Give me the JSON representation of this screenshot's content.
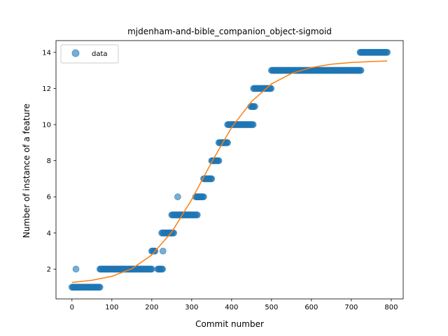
{
  "chart_data": {
    "type": "scatter",
    "title": "mjdenham-and-bible_companion_object-sigmoid",
    "xlabel": "Commit number",
    "ylabel": "Number of instance of a feature",
    "xlim": [
      -40,
      830
    ],
    "ylim": [
      0.35,
      14.65
    ],
    "xticks": [
      0,
      100,
      200,
      300,
      400,
      500,
      600,
      700,
      800
    ],
    "yticks": [
      2,
      4,
      6,
      8,
      10,
      12,
      14
    ],
    "grid": false,
    "legend": {
      "location": "upper left",
      "entries": [
        "data"
      ]
    },
    "series": [
      {
        "name": "data",
        "kind": "scatter",
        "color": "#1f77b4",
        "segments": [
          {
            "x_start": 0,
            "x_end": 70,
            "y": 1
          },
          {
            "x_start": 70,
            "x_end": 200,
            "y": 2
          },
          {
            "x_start": 215,
            "x_end": 228,
            "y": 2
          },
          {
            "x_start": 200,
            "x_end": 208,
            "y": 3
          },
          {
            "x_start": 225,
            "x_end": 255,
            "y": 4
          },
          {
            "x_start": 250,
            "x_end": 315,
            "y": 5
          },
          {
            "x_start": 310,
            "x_end": 330,
            "y": 6
          },
          {
            "x_start": 330,
            "x_end": 350,
            "y": 7
          },
          {
            "x_start": 350,
            "x_end": 368,
            "y": 8
          },
          {
            "x_start": 368,
            "x_end": 390,
            "y": 9
          },
          {
            "x_start": 390,
            "x_end": 455,
            "y": 10
          },
          {
            "x_start": 448,
            "x_end": 458,
            "y": 11
          },
          {
            "x_start": 455,
            "x_end": 500,
            "y": 12
          },
          {
            "x_start": 500,
            "x_end": 725,
            "y": 13
          },
          {
            "x_start": 722,
            "x_end": 790,
            "y": 14
          }
        ],
        "extra_points": [
          {
            "x": 10,
            "y": 2
          },
          {
            "x": 228,
            "y": 3
          },
          {
            "x": 265,
            "y": 6
          }
        ]
      },
      {
        "name": "",
        "kind": "line",
        "color": "#ff7f0e",
        "x": [
          0,
          50,
          100,
          150,
          200,
          250,
          300,
          350,
          400,
          450,
          500,
          550,
          600,
          650,
          700,
          750,
          790
        ],
        "y": [
          1.26,
          1.38,
          1.6,
          2.02,
          2.78,
          4.05,
          5.85,
          7.92,
          9.84,
          11.28,
          12.25,
          12.83,
          13.16,
          13.34,
          13.44,
          13.49,
          13.52
        ]
      }
    ]
  }
}
